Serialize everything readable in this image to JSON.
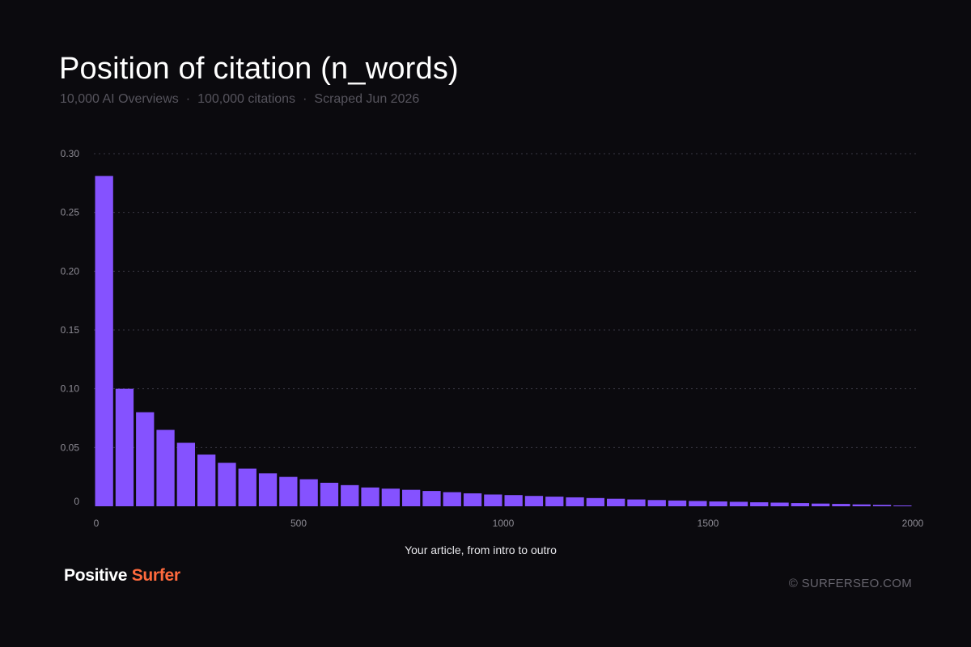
{
  "header": {
    "title": "Position of citation (n_words)",
    "subtitle_parts": [
      "10,000 AI Overviews",
      "100,000 citations",
      "Scraped Jun 2026"
    ],
    "separator": "·"
  },
  "colors": {
    "background": "#0b0a0e",
    "bar": "#8552ff",
    "gridline": "#3a3844",
    "tick_text": "#8d8b94",
    "axis_label": "#e6e6ea",
    "brand_accent": "#ff6a3d"
  },
  "chart_data": {
    "type": "bar",
    "title": "Position of citation (n_words)",
    "xlabel": "Your article, from intro to outro",
    "ylabel": "",
    "bin_width": 50,
    "x": [
      0,
      50,
      100,
      150,
      200,
      250,
      300,
      350,
      400,
      450,
      500,
      550,
      600,
      650,
      700,
      750,
      800,
      850,
      900,
      950,
      1000,
      1050,
      1100,
      1150,
      1200,
      1250,
      1300,
      1350,
      1400,
      1450,
      1500,
      1550,
      1600,
      1650,
      1700,
      1750,
      1800,
      1850,
      1900,
      1950
    ],
    "values": [
      0.281,
      0.1,
      0.08,
      0.065,
      0.054,
      0.044,
      0.037,
      0.032,
      0.028,
      0.025,
      0.023,
      0.02,
      0.018,
      0.016,
      0.015,
      0.014,
      0.013,
      0.012,
      0.011,
      0.01,
      0.0095,
      0.0088,
      0.0082,
      0.0076,
      0.007,
      0.0064,
      0.0058,
      0.0053,
      0.0049,
      0.0045,
      0.0041,
      0.0038,
      0.0034,
      0.0031,
      0.0027,
      0.0023,
      0.002,
      0.0016,
      0.0012,
      0.0007
    ],
    "xlim": [
      0,
      2000
    ],
    "ylim": [
      0,
      0.3
    ],
    "x_ticks": [
      0,
      500,
      1000,
      1500,
      2000
    ],
    "x_tick_labels": [
      "0",
      "500",
      "1000",
      "1500",
      "2000"
    ],
    "y_ticks": [
      0,
      0.05,
      0.1,
      0.15,
      0.2,
      0.25,
      0.3
    ],
    "y_tick_labels": [
      "0",
      "0.05",
      "0.10",
      "0.15",
      "0.20",
      "0.25",
      "0.30"
    ],
    "grid": "horizontal dashed",
    "legend": "none"
  },
  "footer": {
    "brand_word1": "Positive",
    "brand_word2": "Surfer",
    "copyright": "© SURFERSEO.COM"
  }
}
